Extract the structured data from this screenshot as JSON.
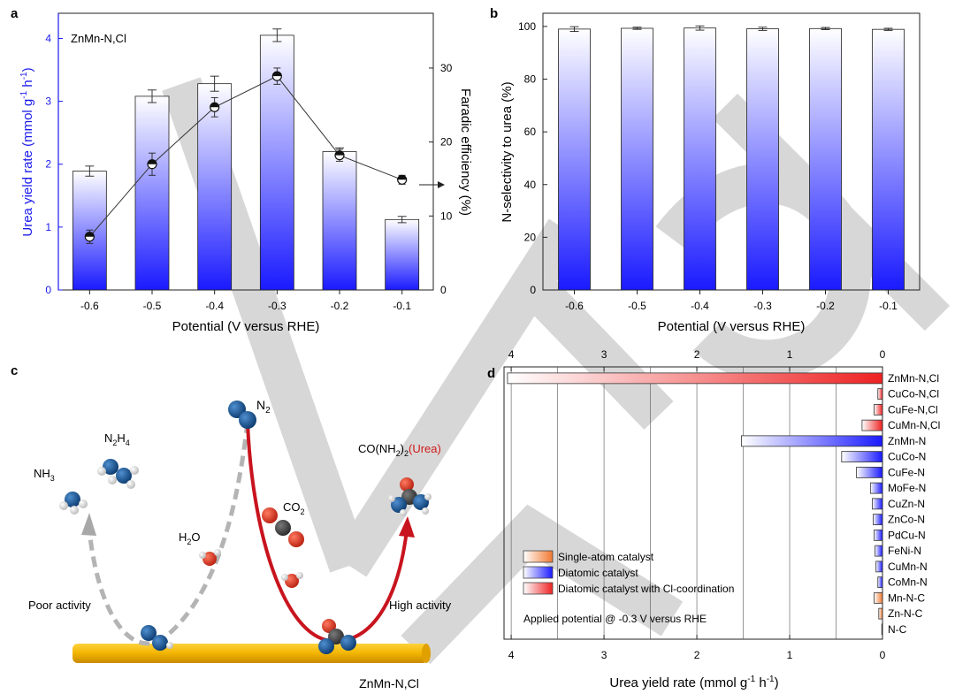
{
  "colors": {
    "blue": "#1a1aff",
    "red": "#ee2222",
    "orange": "#f07830",
    "gold": "#f2b400",
    "axis_a_left": "#1a1aee",
    "curve_red": "#c8141e",
    "curve_grey": "#b4b4b4",
    "atom_n": "#0f4c8a",
    "atom_h": "#dcdcdc",
    "atom_c": "#3c3c3c",
    "atom_o": "#dc3c28",
    "watermark": "#d7d7d7"
  },
  "watermark": {
    "text": "YN-VOI",
    "kind": "diagonal-stroke-watermark"
  },
  "panel_a": {
    "label": "a",
    "annotation": "ZnMn-N,Cl",
    "xlabel": "Potential (V versus RHE)",
    "ylabel_left": "Urea yield rate (mmol g⁻¹ h⁻¹)",
    "ylabel_left_main": "Urea yield rate (mmol g",
    "ylabel_left_sup1": "-1",
    "ylabel_left_mid": " h",
    "ylabel_left_sup2": "-1",
    "ylabel_left_end": ")",
    "ylabel_right": "Faradic efficiency (%)"
  },
  "panel_b": {
    "label": "b",
    "xlabel": "Potential (V versus RHE)",
    "ylabel": "N-selectivity to urea (%)"
  },
  "panel_c": {
    "label": "c",
    "surface_label": "ZnMn-N,Cl",
    "nh3": "NH₃",
    "n2h4": "N₂H₄",
    "n2": "N₂",
    "co2": "CO₂",
    "h2o": "H₂O",
    "urea_formula": "CO(NH₂)₂",
    "urea_name": "(Urea)",
    "poor": "Poor activity",
    "high": "High activity"
  },
  "panel_d": {
    "label": "d",
    "xlabel": "Urea yield rate (mmol g⁻¹ h⁻¹)",
    "xlabel_main": "Urea yield rate (mmol g",
    "xlabel_sup1": "-1",
    "xlabel_mid": " h",
    "xlabel_sup2": "-1",
    "xlabel_end": ")",
    "note": "Applied potential @ -0.3 V versus RHE",
    "legend": [
      {
        "label": "Single-atom catalyst",
        "type": "single"
      },
      {
        "label": "Diatomic catalyst",
        "type": "diatomic"
      },
      {
        "label": "Diatomic catalyst with Cl-coordination",
        "type": "cl"
      }
    ]
  },
  "chart_data": [
    {
      "panel": "a",
      "type": "bar",
      "categories": [
        "-0.6",
        "-0.5",
        "-0.4",
        "-0.3",
        "-0.2",
        "-0.1"
      ],
      "series": [
        {
          "name": "Urea yield rate",
          "axis": "left",
          "values": [
            1.89,
            3.08,
            3.28,
            4.05,
            2.2,
            1.12
          ],
          "errors": [
            0.08,
            0.1,
            0.12,
            0.1,
            0.06,
            0.05
          ]
        },
        {
          "name": "Faradic efficiency",
          "axis": "right",
          "type": "line",
          "values": [
            7.2,
            17.0,
            24.7,
            28.9,
            18.2,
            14.9
          ],
          "errors": [
            0.9,
            1.5,
            1.3,
            1.1,
            0.8,
            0.6
          ]
        }
      ],
      "ylim_left": [
        0,
        4.4
      ],
      "yticks_left": [
        "0",
        "1",
        "2",
        "3",
        "4"
      ],
      "ylim_right": [
        0,
        37.4
      ],
      "yticks_right": [
        "0",
        "10",
        "20",
        "30"
      ],
      "xlabel": "Potential (V versus RHE)",
      "ylabel": "Urea yield rate (mmol g⁻¹ h⁻¹)",
      "ylabel_right": "Faradic efficiency (%)"
    },
    {
      "panel": "b",
      "type": "bar",
      "categories": [
        "-0.6",
        "-0.5",
        "-0.4",
        "-0.3",
        "-0.2",
        "-0.1"
      ],
      "values": [
        99.0,
        99.3,
        99.4,
        99.1,
        99.2,
        98.9
      ],
      "errors": [
        0.9,
        0.4,
        0.8,
        0.6,
        0.4,
        0.4
      ],
      "ylim": [
        0,
        105
      ],
      "yticks": [
        "0",
        "20",
        "40",
        "60",
        "80",
        "100"
      ],
      "xlabel": "Potential (V versus RHE)",
      "ylabel": "N-selectivity to urea (%)"
    },
    {
      "panel": "d",
      "type": "bar",
      "orientation": "horizontal-reversed",
      "categories": [
        "ZnMn-N,Cl",
        "CuCo-N,Cl",
        "CuFe-N,Cl",
        "CuMn-N,Cl",
        "ZnMn-N",
        "CuCo-N",
        "CuFe-N",
        "MoFe-N",
        "CuZn-N",
        "ZnCo-N",
        "PdCu-N",
        "FeNi-N",
        "CuMn-N",
        "CoMn-N",
        "Mn-N-C",
        "Zn-N-C",
        "N-C"
      ],
      "values": [
        4.04,
        0.05,
        0.09,
        0.22,
        1.52,
        0.44,
        0.28,
        0.13,
        0.11,
        0.1,
        0.09,
        0.08,
        0.07,
        0.05,
        0.09,
        0.04,
        0.005
      ],
      "groups": [
        "cl",
        "cl",
        "cl",
        "cl",
        "diatomic",
        "diatomic",
        "diatomic",
        "diatomic",
        "diatomic",
        "diatomic",
        "diatomic",
        "diatomic",
        "diatomic",
        "diatomic",
        "single",
        "single",
        "single"
      ],
      "xlim": [
        4.02,
        0
      ],
      "xticks": [
        "4",
        "3",
        "2",
        "1",
        "0"
      ],
      "xlabel": "Urea yield rate (mmol g⁻¹ h⁻¹)"
    }
  ]
}
